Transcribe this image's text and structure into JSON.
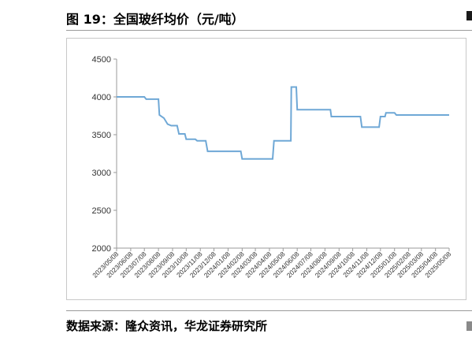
{
  "figure": {
    "title": "图 19：全国玻纤均价（元/吨）",
    "source": "数据来源：隆众资讯，华龙证券研究所"
  },
  "chart_data": {
    "type": "line",
    "title": "",
    "xlabel": "",
    "ylabel": "",
    "ylim": [
      2000,
      4500
    ],
    "yticks": [
      2000,
      2500,
      3000,
      3500,
      4000,
      4500
    ],
    "grid": false,
    "legend": "none",
    "line_color": "#6fa8d6",
    "x_tick_labels": [
      "2023/05/08",
      "2023/06/08",
      "2023/07/08",
      "2023/08/08",
      "2023/09/08",
      "2023/10/08",
      "2023/11/08",
      "2023/12/08",
      "2024/01/08",
      "2024/02/08",
      "2024/03/08",
      "2024/04/08",
      "2024/05/08",
      "2024/06/08",
      "2024/07/08",
      "2024/08/08",
      "2024/09/08",
      "2024/10/08",
      "2024/11/08",
      "2024/12/08",
      "2025/01/08",
      "2025/02/08",
      "2025/03/08",
      "2025/04/08",
      "2025/05/08"
    ],
    "series": [
      {
        "name": "",
        "points": [
          [
            "2023/05/08",
            4000
          ],
          [
            "2023/07/08",
            4000
          ],
          [
            "2023/07/12",
            3970
          ],
          [
            "2023/08/08",
            3970
          ],
          [
            "2023/08/10",
            3760
          ],
          [
            "2023/08/20",
            3720
          ],
          [
            "2023/08/28",
            3640
          ],
          [
            "2023/09/05",
            3620
          ],
          [
            "2023/09/18",
            3620
          ],
          [
            "2023/09/22",
            3510
          ],
          [
            "2023/10/05",
            3510
          ],
          [
            "2023/10/08",
            3440
          ],
          [
            "2023/10/28",
            3440
          ],
          [
            "2023/11/01",
            3420
          ],
          [
            "2023/11/20",
            3420
          ],
          [
            "2023/11/24",
            3280
          ],
          [
            "2024/02/05",
            3280
          ],
          [
            "2024/02/08",
            3180
          ],
          [
            "2024/04/15",
            3180
          ],
          [
            "2024/04/18",
            3420
          ],
          [
            "2024/05/25",
            3420
          ],
          [
            "2024/05/26",
            4130
          ],
          [
            "2024/06/06",
            4130
          ],
          [
            "2024/06/08",
            3830
          ],
          [
            "2024/08/20",
            3830
          ],
          [
            "2024/08/22",
            3740
          ],
          [
            "2024/10/25",
            3740
          ],
          [
            "2024/10/28",
            3600
          ],
          [
            "2024/12/05",
            3600
          ],
          [
            "2024/12/08",
            3740
          ],
          [
            "2024/12/18",
            3740
          ],
          [
            "2024/12/20",
            3790
          ],
          [
            "2025/01/08",
            3790
          ],
          [
            "2025/01/12",
            3760
          ],
          [
            "2025/05/08",
            3760
          ]
        ]
      }
    ]
  }
}
